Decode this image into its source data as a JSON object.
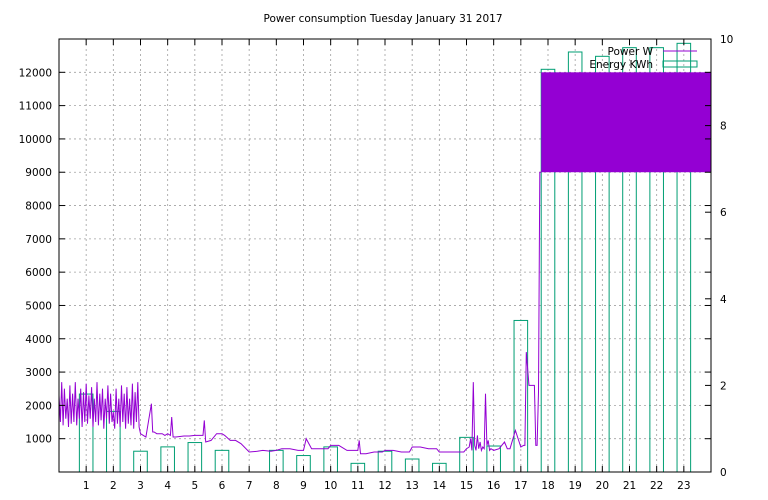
{
  "chart_data": {
    "type": "bar",
    "title": "Power consumption Tuesday January 31 2017",
    "xlabel": "",
    "ylabel": "",
    "y2label": "",
    "x_categories": [
      "1",
      "2",
      "3",
      "4",
      "5",
      "6",
      "7",
      "8",
      "9",
      "10",
      "11",
      "12",
      "13",
      "14",
      "15",
      "16",
      "17",
      "18",
      "19",
      "20",
      "21",
      "22",
      "23"
    ],
    "xlim": [
      0,
      24
    ],
    "ylim": [
      0,
      13000
    ],
    "y2lim": [
      0,
      10
    ],
    "yticks": [
      1000,
      2000,
      3000,
      4000,
      5000,
      6000,
      7000,
      8000,
      9000,
      10000,
      11000,
      12000
    ],
    "y2ticks": [
      0,
      2,
      4,
      6,
      8,
      10
    ],
    "grid": true,
    "legend_position": "top-right",
    "colors": {
      "power": "#9400d3",
      "energy": "#009e73"
    },
    "series": [
      {
        "name": "Power W",
        "axis": "left",
        "style": "line",
        "x": [
          0.0,
          0.05,
          0.1,
          0.15,
          0.2,
          0.25,
          0.3,
          0.35,
          0.4,
          0.45,
          0.5,
          0.55,
          0.6,
          0.65,
          0.7,
          0.75,
          0.8,
          0.85,
          0.9,
          0.95,
          1.0,
          1.05,
          1.1,
          1.15,
          1.2,
          1.25,
          1.3,
          1.35,
          1.4,
          1.45,
          1.5,
          1.55,
          1.6,
          1.65,
          1.7,
          1.75,
          1.8,
          1.85,
          1.9,
          1.95,
          2.0,
          2.05,
          2.1,
          2.15,
          2.2,
          2.25,
          2.3,
          2.35,
          2.4,
          2.45,
          2.5,
          2.55,
          2.6,
          2.65,
          2.7,
          2.75,
          2.8,
          2.85,
          2.9,
          2.95,
          3.0,
          3.2,
          3.4,
          3.45,
          3.5,
          3.6,
          3.8,
          3.9,
          4.0,
          4.1,
          4.15,
          4.2,
          4.3,
          4.6,
          4.8,
          5.0,
          5.2,
          5.3,
          5.35,
          5.4,
          5.6,
          5.8,
          6.0,
          6.1,
          6.3,
          6.5,
          6.7,
          7.0,
          7.3,
          7.5,
          7.8,
          8.0,
          8.2,
          8.5,
          8.8,
          9.0,
          9.1,
          9.3,
          9.6,
          9.9,
          10.0,
          10.3,
          10.6,
          10.9,
          11.0,
          11.05,
          11.1,
          11.3,
          11.6,
          11.9,
          12.0,
          12.3,
          12.6,
          12.9,
          13.0,
          13.3,
          13.6,
          13.9,
          14.0,
          14.3,
          14.6,
          14.9,
          15.0,
          15.1,
          15.15,
          15.2,
          15.25,
          15.3,
          15.35,
          15.4,
          15.45,
          15.5,
          15.55,
          15.6,
          15.65,
          15.7,
          15.75,
          15.8,
          15.85,
          15.9,
          16.0,
          16.2,
          16.4,
          16.5,
          16.6,
          16.8,
          17.0,
          17.1,
          17.15,
          17.2,
          17.3,
          17.5,
          17.55,
          17.6,
          17.65,
          17.7,
          17.72,
          17.75
        ],
        "y": [
          2300,
          1500,
          2700,
          1400,
          2500,
          1600,
          2200,
          1350,
          2600,
          1450,
          2350,
          1500,
          2700,
          1400,
          2200,
          1600,
          2500,
          1350,
          2400,
          1500,
          2650,
          1450,
          2300,
          1600,
          2550,
          1350,
          2200,
          1500,
          2700,
          1400,
          2350,
          1550,
          2500,
          1300,
          2200,
          1600,
          2600,
          1450,
          2350,
          1500,
          1800,
          1300,
          2500,
          1450,
          2200,
          1350,
          2600,
          1500,
          2350,
          1300,
          2550,
          1450,
          2200,
          1400,
          2650,
          1300,
          2400,
          1500,
          2700,
          1350,
          1150,
          1050,
          2050,
          1200,
          1200,
          1150,
          1150,
          1100,
          1150,
          1100,
          1650,
          1050,
          1050,
          1080,
          1080,
          1100,
          1100,
          1100,
          1550,
          900,
          950,
          1150,
          1150,
          1100,
          950,
          950,
          850,
          600,
          620,
          650,
          620,
          650,
          700,
          700,
          650,
          650,
          1000,
          700,
          700,
          700,
          800,
          800,
          650,
          650,
          650,
          950,
          550,
          550,
          600,
          600,
          650,
          650,
          600,
          600,
          750,
          750,
          700,
          700,
          600,
          600,
          600,
          600,
          700,
          750,
          1000,
          650,
          2700,
          800,
          650,
          1100,
          700,
          900,
          650,
          750,
          700,
          2350,
          800,
          950,
          650,
          700,
          650,
          700,
          900,
          700,
          700,
          1250,
          750,
          800,
          800,
          3600,
          2600,
          2600,
          800,
          800,
          2400,
          9000,
          9000,
          9000
        ]
      },
      {
        "name": "Energy KWh",
        "axis": "right",
        "style": "boxes",
        "x": [
          1,
          2,
          3,
          4,
          5,
          6,
          7,
          8,
          9,
          10,
          11,
          12,
          13,
          14,
          15,
          16,
          17,
          18,
          19,
          20,
          21,
          22,
          23
        ],
        "values": [
          1.8,
          1.4,
          0.48,
          0.58,
          0.68,
          0.5,
          0.0,
          0.5,
          0.38,
          0.58,
          0.2,
          0.48,
          0.3,
          0.2,
          0.8,
          0.6,
          3.5,
          9.3,
          9.7,
          9.6,
          9.8,
          9.8,
          9.9
        ]
      }
    ]
  }
}
